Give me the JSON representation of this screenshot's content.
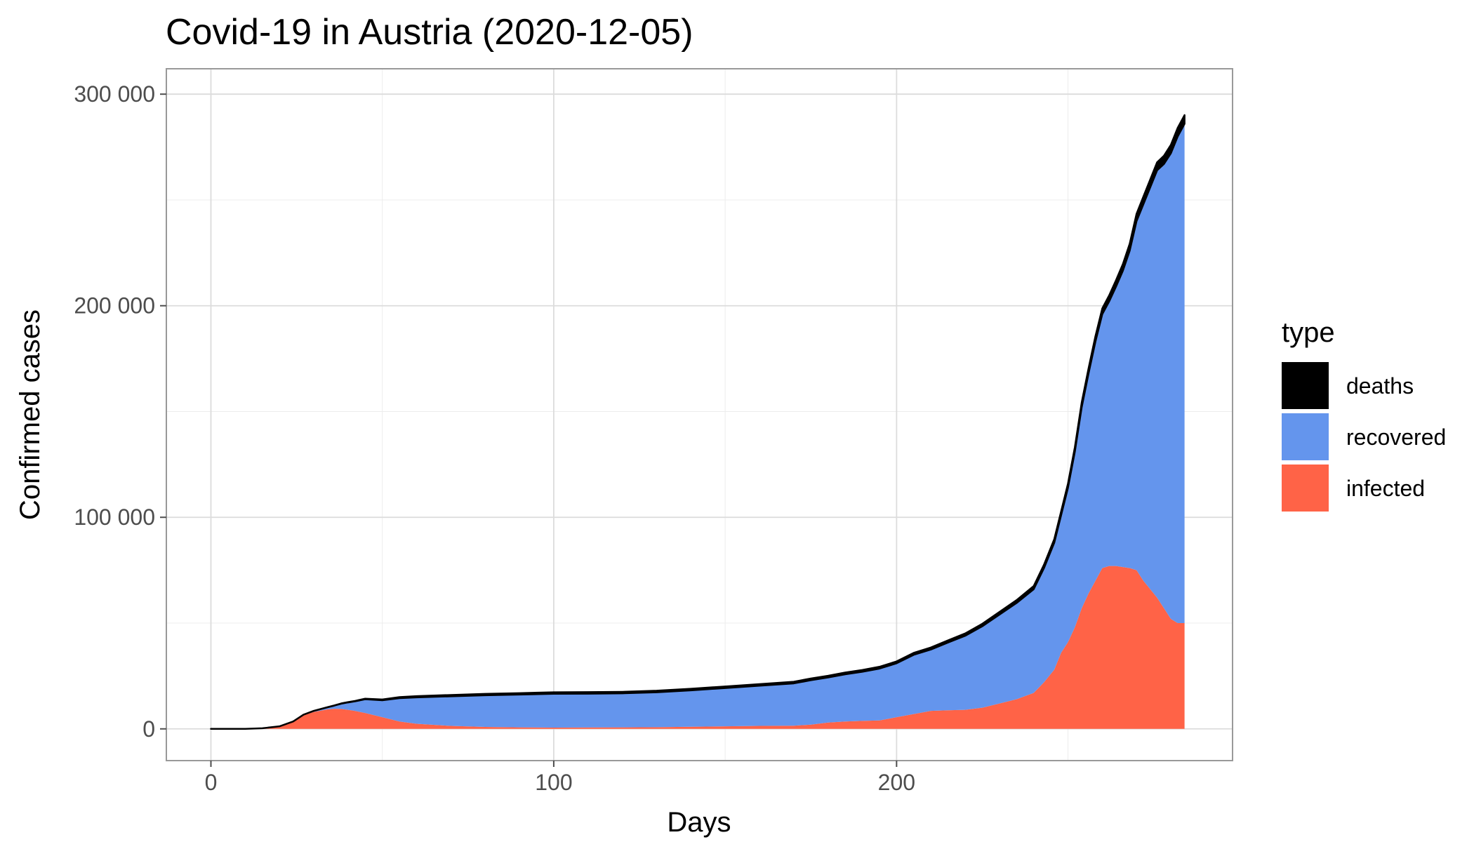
{
  "chart_data": {
    "type": "area",
    "stacked": true,
    "title": "Covid-19 in Austria (2020-12-05)",
    "xlabel": "Days",
    "ylabel": "Confirmed cases",
    "xlim": [
      -13,
      298
    ],
    "ylim": [
      -15000,
      312000
    ],
    "x_ticks": [
      0,
      100,
      200
    ],
    "x_tick_labels": [
      "0",
      "100",
      "200"
    ],
    "y_ticks": [
      0,
      100000,
      200000,
      300000
    ],
    "y_tick_labels": [
      "0",
      "100 000",
      "200 000",
      "300 000"
    ],
    "grid": true,
    "legend": {
      "title": "type",
      "position": "right",
      "entries": [
        {
          "label": "deaths",
          "color": "#000000"
        },
        {
          "label": "recovered",
          "color": "#6495ed"
        },
        {
          "label": "infected",
          "color": "#ff6347"
        }
      ]
    },
    "x": [
      0,
      10,
      15,
      20,
      24,
      27,
      30,
      34,
      36,
      38,
      40,
      42,
      45,
      50,
      55,
      60,
      70,
      80,
      90,
      100,
      110,
      120,
      130,
      140,
      150,
      160,
      170,
      175,
      180,
      185,
      190,
      195,
      200,
      205,
      210,
      215,
      220,
      225,
      230,
      235,
      240,
      243,
      246,
      248,
      250,
      252,
      254,
      256,
      258,
      260,
      262,
      264,
      266,
      268,
      270,
      272,
      274,
      276,
      278,
      280,
      282,
      284
    ],
    "series": [
      {
        "name": "infected",
        "color": "#ff6347",
        "values": [
          0,
          0,
          300,
          1200,
          3500,
          6500,
          8000,
          9200,
          9500,
          9400,
          9000,
          8500,
          7500,
          5500,
          3500,
          2400,
          1400,
          900,
          700,
          600,
          650,
          700,
          800,
          1000,
          1200,
          1400,
          1500,
          2000,
          3000,
          3500,
          3800,
          4000,
          5500,
          7000,
          8500,
          8800,
          9000,
          10000,
          12000,
          14000,
          17000,
          22000,
          28000,
          36000,
          41000,
          48000,
          57000,
          64000,
          70000,
          76000,
          77000,
          77000,
          76500,
          76000,
          75000,
          70000,
          66000,
          62000,
          57000,
          52000,
          50000,
          50000
        ]
      },
      {
        "name": "recovered",
        "color": "#6495ed",
        "values": [
          0,
          0,
          0,
          0,
          0,
          200,
          500,
          1000,
          1500,
          2500,
          3500,
          4500,
          6500,
          8000,
          11000,
          12500,
          14000,
          15000,
          15500,
          16000,
          16000,
          16100,
          16500,
          17200,
          18100,
          19000,
          20000,
          21000,
          21300,
          22300,
          23200,
          24500,
          25500,
          28000,
          29000,
          32000,
          35000,
          38500,
          42000,
          45500,
          49000,
          54000,
          60000,
          65000,
          73000,
          83000,
          95000,
          104000,
          113000,
          120000,
          125000,
          132000,
          140000,
          150000,
          165000,
          178000,
          190000,
          202000,
          210000,
          220000,
          230000,
          236000
        ]
      },
      {
        "name": "deaths",
        "color": "#000000",
        "values": [
          0,
          0,
          0,
          0,
          0,
          0,
          20,
          50,
          80,
          120,
          160,
          200,
          280,
          400,
          500,
          570,
          620,
          650,
          680,
          700,
          710,
          720,
          730,
          740,
          750,
          760,
          780,
          790,
          800,
          810,
          830,
          850,
          880,
          920,
          970,
          1020,
          1080,
          1150,
          1250,
          1350,
          1500,
          1600,
          1700,
          1800,
          1950,
          2100,
          2250,
          2400,
          2550,
          2700,
          2850,
          3000,
          3150,
          3300,
          3450,
          3600,
          3700,
          3800,
          3900,
          4000,
          4050,
          4100
        ]
      }
    ]
  }
}
